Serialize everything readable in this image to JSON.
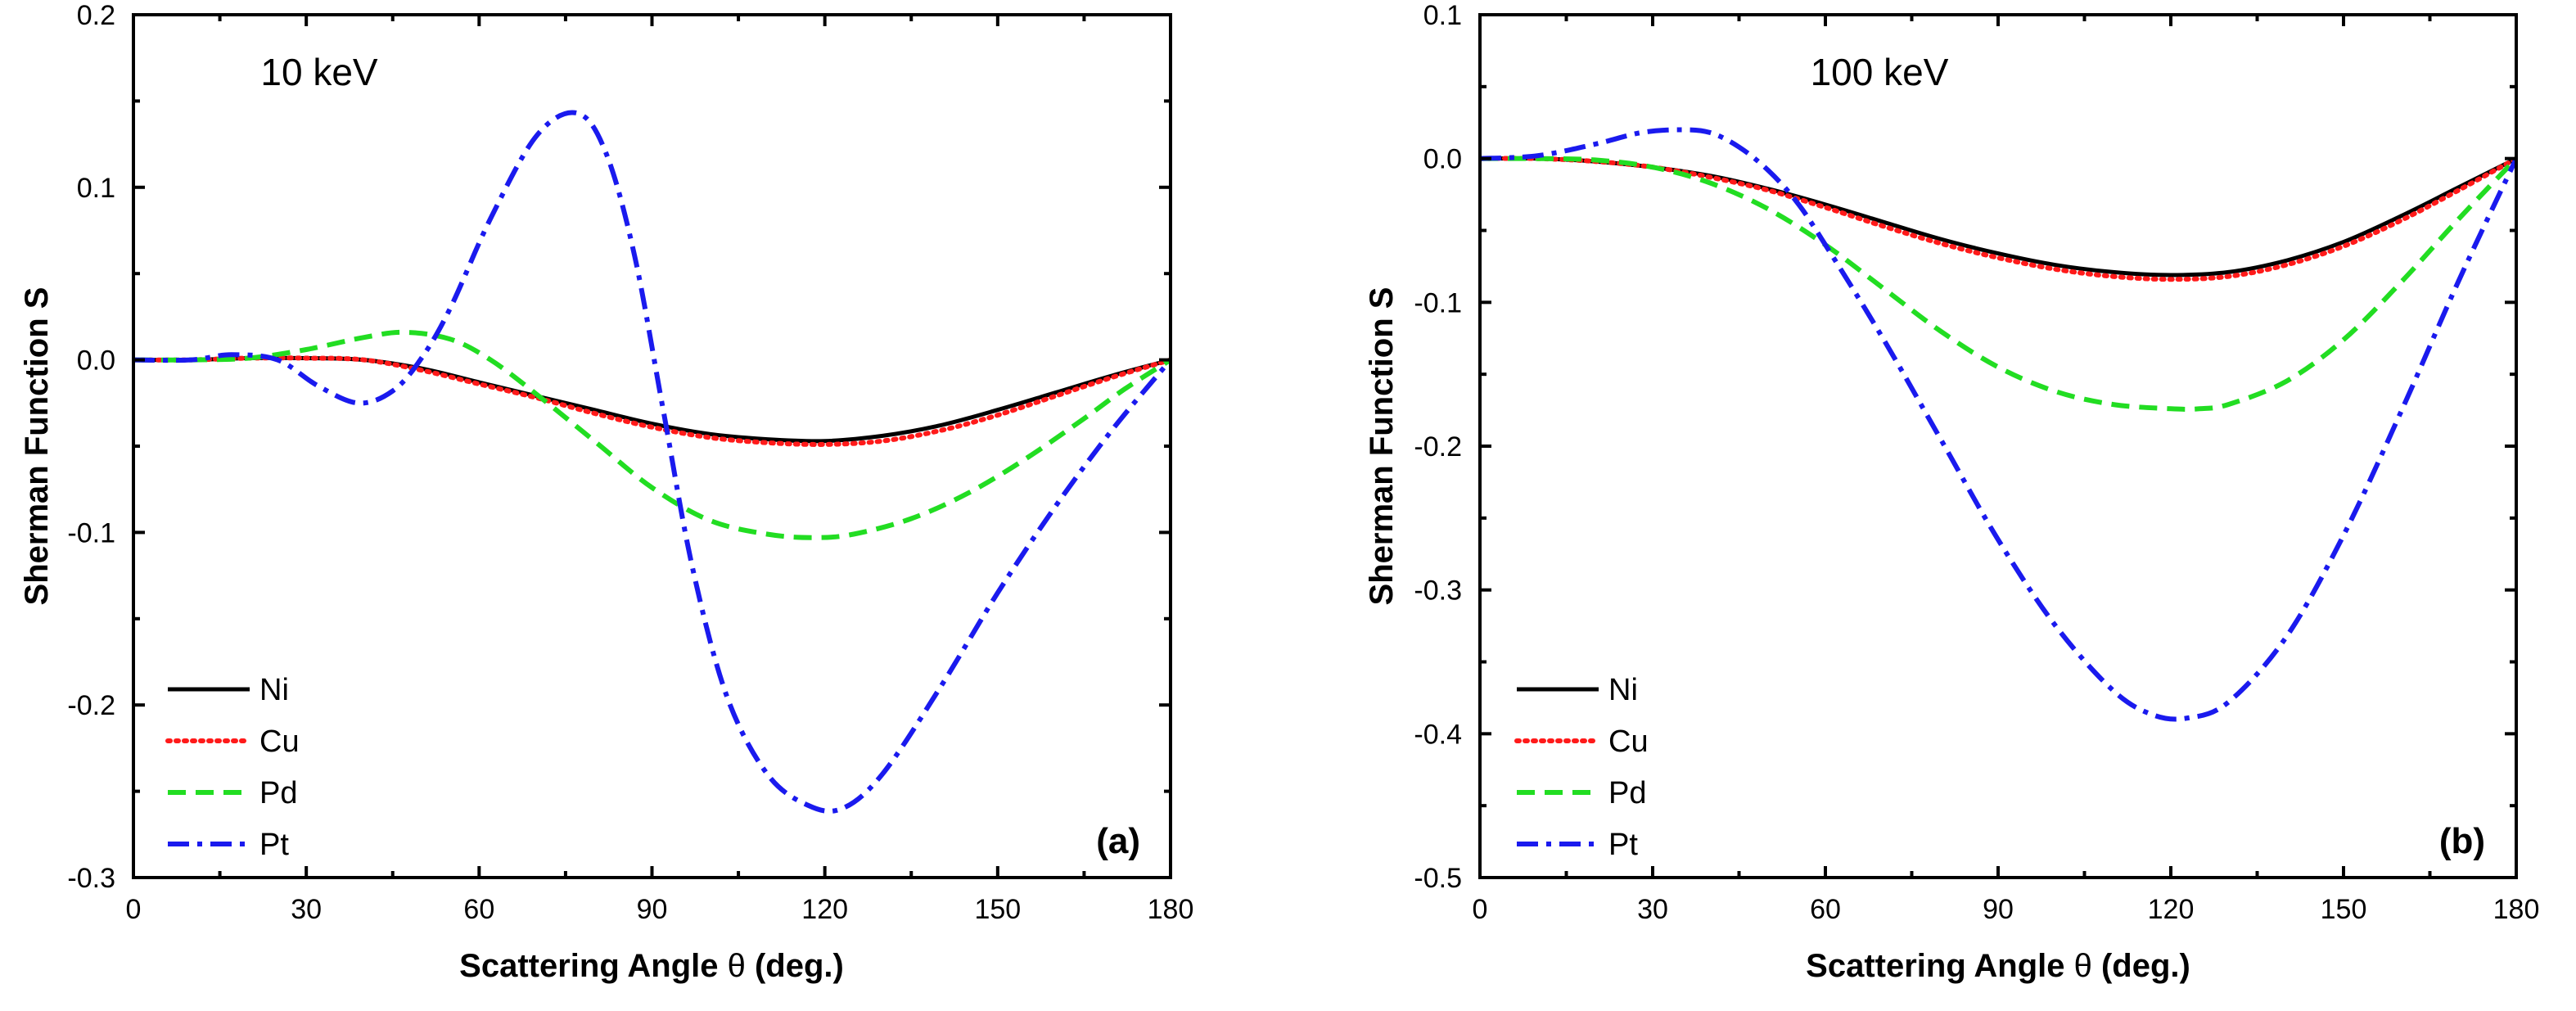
{
  "chart_data": [
    {
      "type": "line",
      "panel": "(a)",
      "annotation": "10 keV",
      "xlabel_prefix": "Scattering Angle ",
      "xlabel_symbol": "θ",
      "xlabel_suffix": " (deg.)",
      "ylabel": "Sherman Function S",
      "xlim": [
        0,
        180
      ],
      "ylim": [
        -0.3,
        0.2
      ],
      "xticks": [
        0,
        30,
        60,
        90,
        120,
        150,
        180
      ],
      "xtick_labels": [
        "0",
        "30",
        "60",
        "90",
        "120",
        "150",
        "180"
      ],
      "yticks": [
        -0.3,
        -0.2,
        -0.1,
        0.0,
        0.1,
        0.2
      ],
      "ytick_labels": [
        "-0.3",
        "-0.2",
        "-0.1",
        "0.0",
        "0.1",
        "0.2"
      ],
      "legend_position": "bottom-left",
      "series": [
        {
          "name": "Ni",
          "color": "#000000",
          "style": "solid",
          "x": [
            0,
            10,
            20,
            30,
            40,
            50,
            60,
            70,
            80,
            90,
            100,
            110,
            120,
            130,
            140,
            150,
            160,
            170,
            180
          ],
          "y": [
            0.0,
            0.0,
            0.001,
            0.001,
            0.0,
            -0.005,
            -0.013,
            -0.021,
            -0.029,
            -0.037,
            -0.043,
            -0.046,
            -0.047,
            -0.044,
            -0.038,
            -0.029,
            -0.019,
            -0.009,
            0.0
          ]
        },
        {
          "name": "Cu",
          "color": "#ff1a1a",
          "style": "dotted",
          "x": [
            0,
            10,
            20,
            30,
            40,
            50,
            60,
            70,
            80,
            90,
            100,
            110,
            120,
            130,
            140,
            150,
            160,
            170,
            180
          ],
          "y": [
            0.0,
            0.0,
            0.001,
            0.001,
            0.0,
            -0.006,
            -0.014,
            -0.022,
            -0.031,
            -0.039,
            -0.045,
            -0.048,
            -0.049,
            -0.047,
            -0.041,
            -0.032,
            -0.021,
            -0.01,
            0.0
          ]
        },
        {
          "name": "Pd",
          "color": "#22dd22",
          "style": "dashed",
          "x": [
            0,
            10,
            20,
            30,
            40,
            47,
            55,
            62,
            70,
            80,
            90,
            100,
            110,
            118,
            125,
            135,
            145,
            155,
            165,
            172,
            180
          ],
          "y": [
            0.0,
            0.0,
            0.001,
            0.006,
            0.013,
            0.016,
            0.012,
            0.0,
            -0.02,
            -0.047,
            -0.074,
            -0.093,
            -0.101,
            -0.103,
            -0.101,
            -0.092,
            -0.077,
            -0.057,
            -0.034,
            -0.017,
            0.0
          ]
        },
        {
          "name": "Pt",
          "color": "#1a1aee",
          "style": "dashdot",
          "x": [
            0,
            10,
            17,
            25,
            32,
            39,
            45,
            50,
            55,
            62,
            70,
            77,
            82,
            87,
            92,
            97,
            103,
            110,
            117,
            123,
            130,
            140,
            150,
            160,
            170,
            180
          ],
          "y": [
            0.0,
            0.0,
            0.003,
            0.0,
            -0.015,
            -0.025,
            -0.018,
            0.001,
            0.03,
            0.082,
            0.13,
            0.143,
            0.12,
            0.06,
            -0.03,
            -0.12,
            -0.195,
            -0.24,
            -0.258,
            -0.26,
            -0.24,
            -0.19,
            -0.135,
            -0.085,
            -0.04,
            0.0
          ]
        }
      ]
    },
    {
      "type": "line",
      "panel": "(b)",
      "annotation": "100 keV",
      "xlabel_prefix": "Scattering Angle ",
      "xlabel_symbol": "θ",
      "xlabel_suffix": " (deg.)",
      "ylabel": "Sherman Function S",
      "xlim": [
        0,
        180
      ],
      "ylim": [
        -0.5,
        0.1
      ],
      "xticks": [
        0,
        30,
        60,
        90,
        120,
        150,
        180
      ],
      "xtick_labels": [
        "0",
        "30",
        "60",
        "90",
        "120",
        "150",
        "180"
      ],
      "yticks": [
        -0.5,
        -0.4,
        -0.3,
        -0.2,
        -0.1,
        0.0,
        0.1
      ],
      "ytick_labels": [
        "-0.5",
        "-0.4",
        "-0.3",
        "-0.2",
        "-0.1",
        "0.0",
        "0.1"
      ],
      "legend_position": "bottom-left",
      "series": [
        {
          "name": "Ni",
          "color": "#000000",
          "style": "solid",
          "x": [
            0,
            10,
            20,
            30,
            40,
            50,
            60,
            70,
            80,
            90,
            100,
            110,
            120,
            130,
            140,
            150,
            160,
            170,
            180
          ],
          "y": [
            0.0,
            0.0,
            -0.002,
            -0.006,
            -0.012,
            -0.021,
            -0.032,
            -0.044,
            -0.056,
            -0.066,
            -0.074,
            -0.079,
            -0.081,
            -0.079,
            -0.071,
            -0.058,
            -0.04,
            -0.02,
            0.0
          ]
        },
        {
          "name": "Cu",
          "color": "#ff1a1a",
          "style": "dotted",
          "x": [
            0,
            10,
            20,
            30,
            40,
            50,
            60,
            70,
            80,
            90,
            100,
            110,
            120,
            130,
            140,
            150,
            160,
            170,
            180
          ],
          "y": [
            0.0,
            0.0,
            -0.002,
            -0.006,
            -0.013,
            -0.022,
            -0.034,
            -0.047,
            -0.059,
            -0.069,
            -0.077,
            -0.082,
            -0.084,
            -0.082,
            -0.074,
            -0.061,
            -0.043,
            -0.022,
            0.0
          ]
        },
        {
          "name": "Pd",
          "color": "#22dd22",
          "style": "dashed",
          "x": [
            0,
            10,
            20,
            30,
            40,
            50,
            60,
            70,
            80,
            90,
            100,
            110,
            120,
            125,
            130,
            140,
            150,
            160,
            170,
            180
          ],
          "y": [
            0.0,
            0.0,
            -0.001,
            -0.006,
            -0.017,
            -0.035,
            -0.06,
            -0.09,
            -0.12,
            -0.145,
            -0.162,
            -0.171,
            -0.174,
            -0.174,
            -0.171,
            -0.155,
            -0.126,
            -0.086,
            -0.042,
            0.0
          ]
        },
        {
          "name": "Pt",
          "color": "#1a1aee",
          "style": "dashdot",
          "x": [
            0,
            10,
            20,
            28,
            35,
            40,
            45,
            50,
            55,
            60,
            70,
            80,
            90,
            100,
            110,
            117,
            123,
            130,
            140,
            150,
            160,
            170,
            180
          ],
          "y": [
            0.0,
            0.002,
            0.01,
            0.018,
            0.02,
            0.018,
            0.008,
            -0.008,
            -0.03,
            -0.06,
            -0.125,
            -0.195,
            -0.265,
            -0.325,
            -0.37,
            -0.387,
            -0.389,
            -0.378,
            -0.333,
            -0.262,
            -0.176,
            -0.085,
            0.0
          ]
        }
      ]
    }
  ]
}
